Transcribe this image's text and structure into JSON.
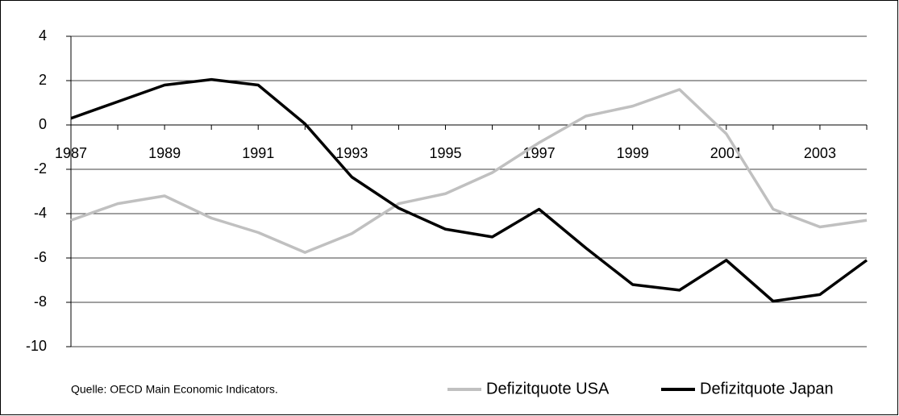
{
  "chart_data": {
    "type": "line",
    "categories": [
      "1987",
      null,
      "1989",
      null,
      "1991",
      null,
      "1993",
      null,
      "1995",
      null,
      "1997",
      null,
      "1999",
      null,
      "2001",
      null,
      "2003",
      null
    ],
    "series": [
      {
        "name": "Defizitquote USA",
        "color": "#c0c0c0",
        "values": [
          -4.3,
          -3.55,
          -3.2,
          -4.2,
          -4.85,
          -5.75,
          -4.9,
          -3.55,
          -3.1,
          -2.15,
          -0.8,
          0.4,
          0.85,
          1.6,
          -0.4,
          -3.8,
          -4.6,
          -4.3
        ]
      },
      {
        "name": "Defizitquote Japan",
        "color": "#000000",
        "values": [
          0.3,
          1.05,
          1.8,
          2.05,
          1.8,
          0.05,
          -2.35,
          -3.75,
          -4.7,
          -5.05,
          -3.8,
          -5.55,
          -7.2,
          -7.45,
          -6.1,
          -7.95,
          -7.65,
          -6.1
        ]
      }
    ],
    "ylim": [
      -10,
      4
    ],
    "yticks": [
      4,
      2,
      0,
      -2,
      -4,
      -6,
      -8,
      -10
    ],
    "grid": true,
    "annotation": "Quelle: OECD Main Economic Indicators."
  }
}
